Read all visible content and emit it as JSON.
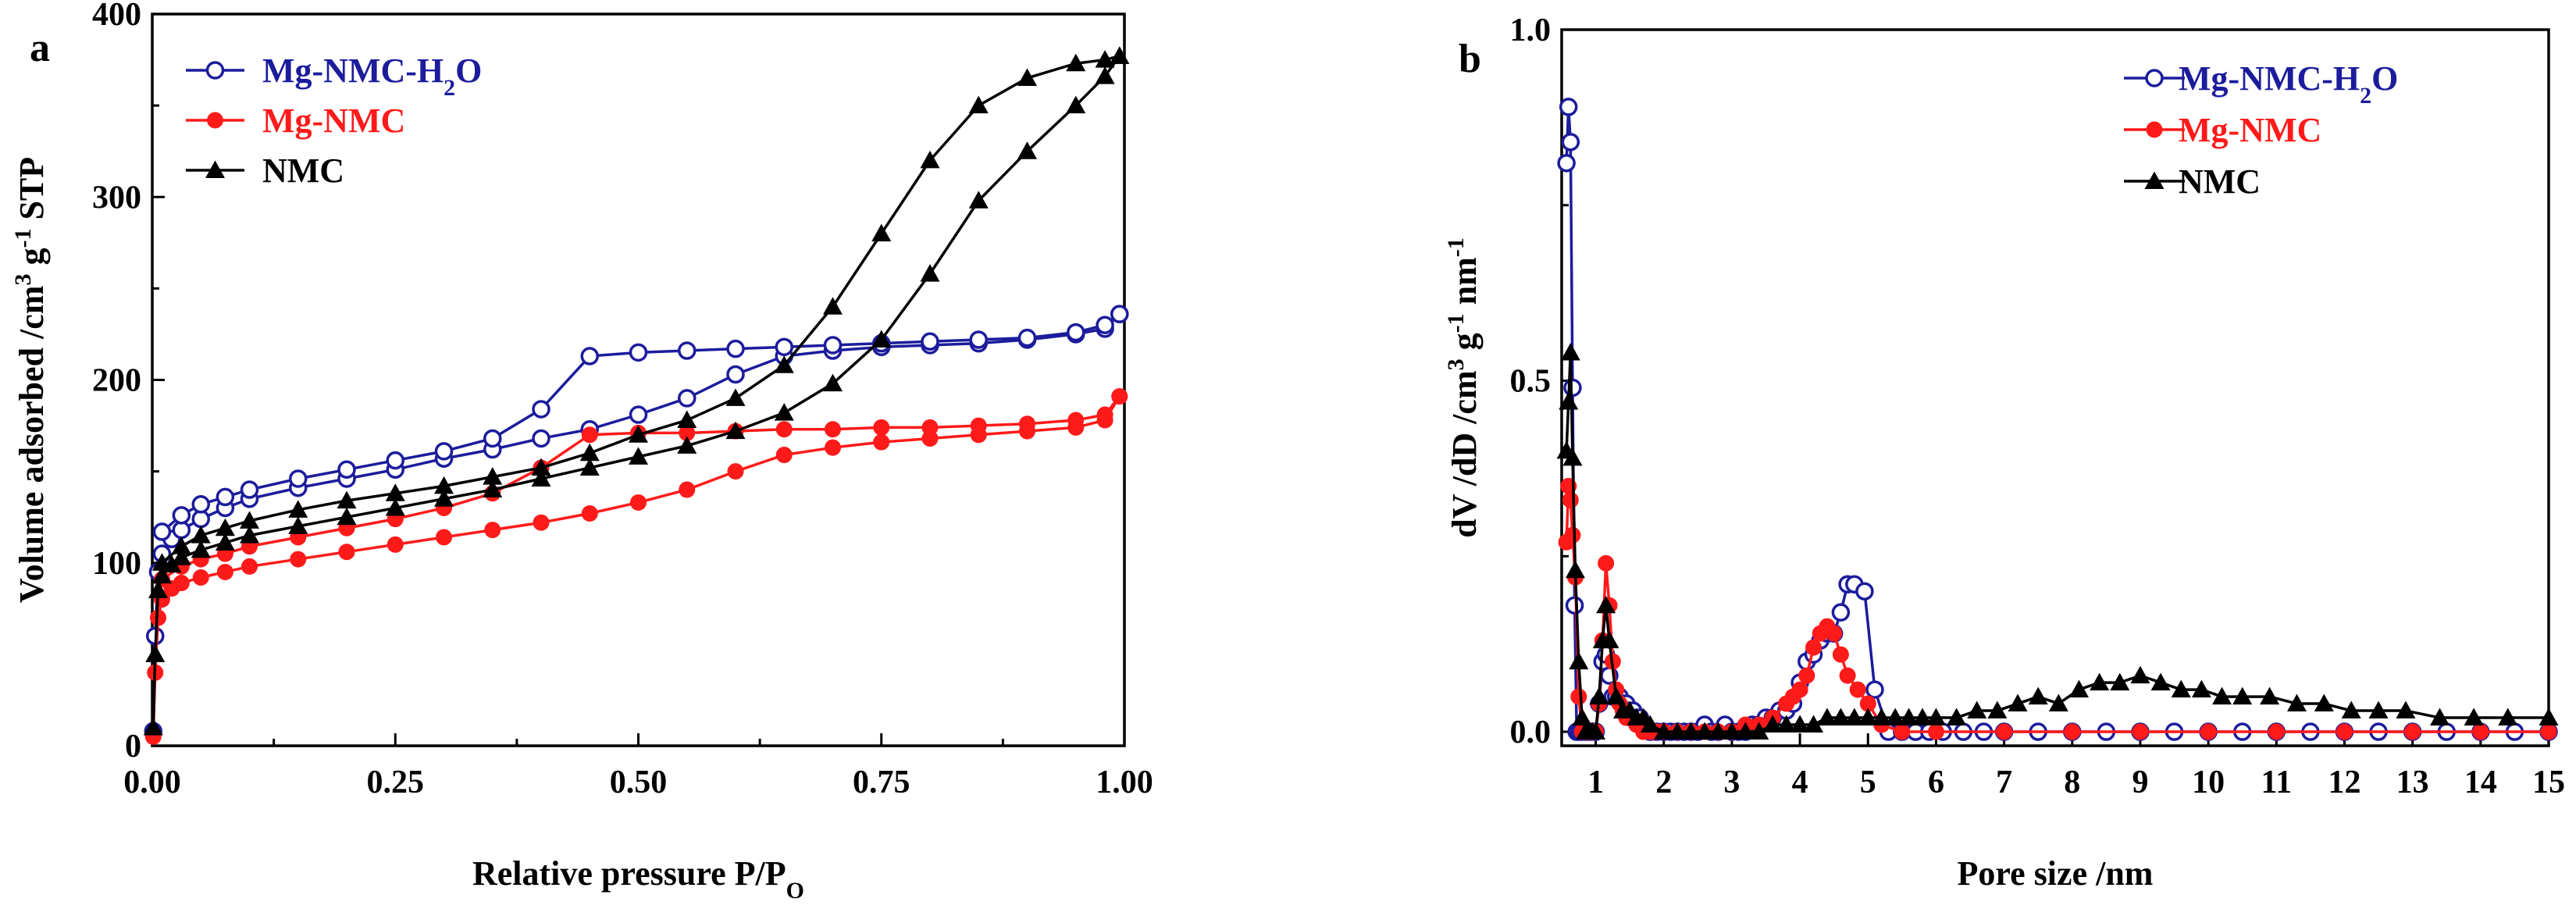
{
  "colors": {
    "blue": "#1c1c9c",
    "red": "#ff1a1a",
    "black": "#000000"
  },
  "chart_data": [
    {
      "panel_label": "a",
      "type": "line",
      "xlabel_main": "Relative pressure P/P",
      "xlabel_sub": "O",
      "ylabel_parts": [
        "Volume adsorbed /cm",
        "3",
        " g",
        "-1",
        " STP"
      ],
      "xlim": [
        0,
        1
      ],
      "ylim": [
        0,
        400
      ],
      "xticks": [
        0,
        0.25,
        0.5,
        0.75,
        1.0
      ],
      "xtick_labels": [
        "0.00",
        "0.25",
        "0.50",
        "0.75",
        "1.00"
      ],
      "yticks": [
        0,
        100,
        200,
        300,
        400
      ],
      "ytick_labels": [
        "0",
        "100",
        "200",
        "300",
        "400"
      ],
      "legend_position": "top-left",
      "series": [
        {
          "name": "Mg-NMC-H2O",
          "legend_main": "Mg-NMC-H",
          "legend_sub": "2",
          "legend_tail": "O",
          "color_key": "blue",
          "marker": "open-circle",
          "branches": [
            {
              "x": [
                0.001,
                0.003,
                0.006,
                0.01,
                0.02,
                0.03,
                0.05,
                0.075,
                0.1,
                0.15,
                0.2,
                0.25,
                0.3,
                0.35,
                0.4,
                0.45,
                0.5,
                0.55,
                0.6,
                0.65,
                0.7,
                0.75,
                0.8,
                0.85,
                0.9,
                0.95,
                0.98,
                0.995
              ],
              "y": [
                8,
                60,
                95,
                105,
                113,
                118,
                124,
                130,
                135,
                141,
                146,
                151,
                157,
                162,
                168,
                173,
                181,
                190,
                203,
                213,
                216,
                218,
                219,
                220,
                222,
                225,
                228,
                236
              ]
            },
            {
              "x": [
                0.995,
                0.98,
                0.95,
                0.9,
                0.85,
                0.8,
                0.75,
                0.7,
                0.65,
                0.6,
                0.55,
                0.5,
                0.45,
                0.4,
                0.35,
                0.3,
                0.25,
                0.2,
                0.15,
                0.1,
                0.075,
                0.05,
                0.03,
                0.01
              ],
              "y": [
                236,
                230,
                226,
                223,
                222,
                221,
                220,
                219,
                218,
                217,
                216,
                215,
                213,
                184,
                168,
                161,
                156,
                151,
                146,
                140,
                136,
                132,
                126,
                117
              ]
            }
          ]
        },
        {
          "name": "Mg-NMC",
          "legend_main": "Mg-NMC",
          "legend_sub": "",
          "legend_tail": "",
          "color_key": "red",
          "marker": "filled-circle",
          "branches": [
            {
              "x": [
                0.001,
                0.003,
                0.006,
                0.01,
                0.02,
                0.03,
                0.05,
                0.075,
                0.1,
                0.15,
                0.2,
                0.25,
                0.3,
                0.35,
                0.4,
                0.45,
                0.5,
                0.55,
                0.6,
                0.65,
                0.7,
                0.75,
                0.8,
                0.85,
                0.9,
                0.95,
                0.98,
                0.995
              ],
              "y": [
                5,
                40,
                70,
                80,
                86,
                89,
                92,
                95,
                98,
                102,
                106,
                110,
                114,
                118,
                122,
                127,
                133,
                140,
                150,
                159,
                163,
                166,
                168,
                170,
                172,
                174,
                178,
                191
              ]
            },
            {
              "x": [
                0.995,
                0.98,
                0.95,
                0.9,
                0.85,
                0.8,
                0.75,
                0.7,
                0.65,
                0.6,
                0.55,
                0.5,
                0.45,
                0.4,
                0.35,
                0.3,
                0.25,
                0.2,
                0.15,
                0.1,
                0.075,
                0.05,
                0.03,
                0.01
              ],
              "y": [
                191,
                181,
                178,
                176,
                175,
                174,
                174,
                173,
                173,
                172,
                171,
                171,
                170,
                152,
                138,
                130,
                124,
                119,
                114,
                109,
                105,
                102,
                98,
                91
              ]
            }
          ]
        },
        {
          "name": "NMC",
          "legend_main": "NMC",
          "legend_sub": "",
          "legend_tail": "",
          "color_key": "black",
          "marker": "filled-triangle",
          "branches": [
            {
              "x": [
                0.001,
                0.003,
                0.006,
                0.01,
                0.02,
                0.03,
                0.05,
                0.075,
                0.1,
                0.15,
                0.2,
                0.25,
                0.3,
                0.35,
                0.4,
                0.45,
                0.5,
                0.55,
                0.6,
                0.65,
                0.7,
                0.75,
                0.8,
                0.85,
                0.9,
                0.95,
                0.98,
                0.995
              ],
              "y": [
                10,
                50,
                85,
                93,
                99,
                103,
                107,
                111,
                115,
                120,
                125,
                130,
                135,
                140,
                146,
                152,
                158,
                164,
                172,
                182,
                198,
                222,
                258,
                298,
                325,
                350,
                366,
                377
              ]
            },
            {
              "x": [
                0.995,
                0.98,
                0.95,
                0.9,
                0.85,
                0.8,
                0.75,
                0.7,
                0.65,
                0.6,
                0.55,
                0.5,
                0.45,
                0.4,
                0.35,
                0.3,
                0.25,
                0.2,
                0.15,
                0.1,
                0.075,
                0.05,
                0.03,
                0.01
              ],
              "y": [
                377,
                375,
                373,
                365,
                350,
                320,
                280,
                240,
                208,
                190,
                178,
                170,
                160,
                152,
                147,
                142,
                138,
                134,
                129,
                123,
                119,
                115,
                109,
                100
              ]
            }
          ]
        }
      ]
    },
    {
      "panel_label": "b",
      "type": "line",
      "xlabel_main": "Pore size /nm",
      "xlabel_sub": "",
      "ylabel_parts": [
        "dV /dD /cm",
        "3",
        " g",
        "-1",
        " nm",
        "-1"
      ],
      "xlim": [
        0.5,
        15
      ],
      "ylim": [
        -0.02,
        1.0
      ],
      "xticks": [
        1,
        2,
        3,
        4,
        5,
        6,
        7,
        8,
        9,
        10,
        11,
        12,
        13,
        14,
        15
      ],
      "xtick_labels": [
        "1",
        "2",
        "3",
        "4",
        "5",
        "6",
        "7",
        "8",
        "9",
        "10",
        "11",
        "12",
        "13",
        "14",
        "15"
      ],
      "yticks": [
        0.0,
        0.5,
        1.0
      ],
      "ytick_labels": [
        "0.0",
        "0.5",
        "1.0"
      ],
      "legend_position": "top-right",
      "series": [
        {
          "name": "Mg-NMC-H2O",
          "legend_main": "Mg-NMC-H",
          "legend_sub": "2",
          "legend_tail": "O",
          "color_key": "blue",
          "marker": "open-circle",
          "branches": [
            {
              "x": [
                0.57,
                0.6,
                0.63,
                0.66,
                0.69,
                0.72,
                0.76,
                0.8,
                0.85,
                0.9,
                0.95,
                1.0,
                1.05,
                1.1,
                1.15,
                1.2,
                1.25,
                1.3,
                1.35,
                1.4,
                1.45,
                1.5,
                1.55,
                1.6,
                1.65,
                1.7,
                1.8,
                1.9,
                2.0,
                2.1,
                2.2,
                2.3,
                2.4,
                2.5,
                2.6,
                2.7,
                2.8,
                2.9,
                3.0,
                3.1,
                3.2,
                3.3,
                3.4,
                3.5,
                3.6,
                3.7,
                3.8,
                3.9,
                4.0,
                4.1,
                4.2,
                4.3,
                4.4,
                4.5,
                4.6,
                4.7,
                4.8,
                4.95,
                5.1,
                5.3,
                5.5,
                5.7,
                5.9,
                6.1,
                6.4,
                6.7,
                7.0,
                7.5,
                8.0,
                8.5,
                9.0,
                9.5,
                10.0,
                10.5,
                11.0,
                11.5,
                12.0,
                12.5,
                13.0,
                13.5,
                14.0,
                14.5,
                15.0
              ],
              "y": [
                0.81,
                0.89,
                0.84,
                0.49,
                0.18,
                0.0,
                0.0,
                0.0,
                0.0,
                0.0,
                0.0,
                0.0,
                0.04,
                0.1,
                0.11,
                0.08,
                0.05,
                0.05,
                0.05,
                0.04,
                0.04,
                0.03,
                0.03,
                0.02,
                0.02,
                0.01,
                0.0,
                0.0,
                0.0,
                0.0,
                0.0,
                0.0,
                0.0,
                0.0,
                0.01,
                0.0,
                0.0,
                0.01,
                0.0,
                0.0,
                0.0,
                0.01,
                0.01,
                0.02,
                0.02,
                0.03,
                0.03,
                0.04,
                0.07,
                0.1,
                0.11,
                0.13,
                0.14,
                0.14,
                0.17,
                0.21,
                0.21,
                0.2,
                0.06,
                0.0,
                0.0,
                0.0,
                0.0,
                0.0,
                0.0,
                0.0,
                0.0,
                0.0,
                0.0,
                0.0,
                0.0,
                0.0,
                0.0,
                0.0,
                0.0,
                0.0,
                0.0,
                0.0,
                0.0,
                0.0,
                0.0,
                0.0,
                0.0
              ]
            }
          ]
        },
        {
          "name": "Mg-NMC",
          "legend_main": "Mg-NMC",
          "legend_sub": "",
          "legend_tail": "",
          "color_key": "red",
          "marker": "filled-circle",
          "branches": [
            {
              "x": [
                0.57,
                0.6,
                0.63,
                0.66,
                0.7,
                0.75,
                0.8,
                0.85,
                0.9,
                0.95,
                1.0,
                1.05,
                1.1,
                1.15,
                1.2,
                1.25,
                1.3,
                1.35,
                1.4,
                1.45,
                1.5,
                1.6,
                1.7,
                1.8,
                1.9,
                2.0,
                2.2,
                2.4,
                2.6,
                2.8,
                3.0,
                3.2,
                3.4,
                3.6,
                3.8,
                3.9,
                4.0,
                4.1,
                4.2,
                4.3,
                4.4,
                4.5,
                4.6,
                4.7,
                4.85,
                5.0,
                5.2,
                5.5,
                6.0,
                7.0,
                8.0,
                9.0,
                10.0,
                11.0,
                12.0,
                13.0,
                14.0,
                15.0
              ],
              "y": [
                0.27,
                0.35,
                0.33,
                0.28,
                0.22,
                0.05,
                0.0,
                0.0,
                0.0,
                0.0,
                0.0,
                0.04,
                0.13,
                0.24,
                0.18,
                0.1,
                0.06,
                0.04,
                0.03,
                0.02,
                0.02,
                0.01,
                0.0,
                0.0,
                0.0,
                0.0,
                0.0,
                0.0,
                0.0,
                0.0,
                0.0,
                0.01,
                0.01,
                0.02,
                0.04,
                0.05,
                0.06,
                0.08,
                0.12,
                0.14,
                0.15,
                0.14,
                0.11,
                0.08,
                0.06,
                0.04,
                0.01,
                0.0,
                0.0,
                0.0,
                0.0,
                0.0,
                0.0,
                0.0,
                0.0,
                0.0,
                0.0,
                0.0
              ]
            }
          ]
        },
        {
          "name": "NMC",
          "legend_main": "NMC",
          "legend_sub": "",
          "legend_tail": "",
          "color_key": "black",
          "marker": "filled-triangle",
          "branches": [
            {
              "x": [
                0.57,
                0.6,
                0.63,
                0.66,
                0.7,
                0.75,
                0.8,
                0.85,
                0.9,
                0.95,
                1.0,
                1.05,
                1.1,
                1.15,
                1.2,
                1.3,
                1.4,
                1.5,
                1.6,
                1.7,
                1.8,
                2.0,
                2.2,
                2.4,
                2.6,
                2.8,
                3.0,
                3.2,
                3.4,
                3.6,
                3.8,
                4.0,
                4.2,
                4.4,
                4.6,
                4.8,
                5.0,
                5.2,
                5.4,
                5.6,
                5.8,
                6.0,
                6.3,
                6.6,
                6.9,
                7.2,
                7.5,
                7.8,
                8.1,
                8.4,
                8.7,
                9.0,
                9.3,
                9.6,
                9.9,
                10.2,
                10.5,
                10.9,
                11.3,
                11.7,
                12.1,
                12.5,
                12.9,
                13.4,
                13.9,
                14.4,
                15.0
              ],
              "y": [
                0.4,
                0.47,
                0.54,
                0.39,
                0.23,
                0.1,
                0.02,
                0.0,
                0.0,
                0.0,
                0.0,
                0.05,
                0.13,
                0.18,
                0.13,
                0.05,
                0.03,
                0.03,
                0.02,
                0.02,
                0.01,
                0.0,
                0.0,
                0.0,
                0.0,
                0.0,
                0.0,
                0.0,
                0.0,
                0.01,
                0.01,
                0.01,
                0.01,
                0.02,
                0.02,
                0.02,
                0.02,
                0.02,
                0.02,
                0.02,
                0.02,
                0.02,
                0.02,
                0.03,
                0.03,
                0.04,
                0.05,
                0.04,
                0.06,
                0.07,
                0.07,
                0.08,
                0.07,
                0.06,
                0.06,
                0.05,
                0.05,
                0.05,
                0.04,
                0.04,
                0.03,
                0.03,
                0.03,
                0.02,
                0.02,
                0.02,
                0.02
              ]
            }
          ]
        }
      ]
    }
  ]
}
